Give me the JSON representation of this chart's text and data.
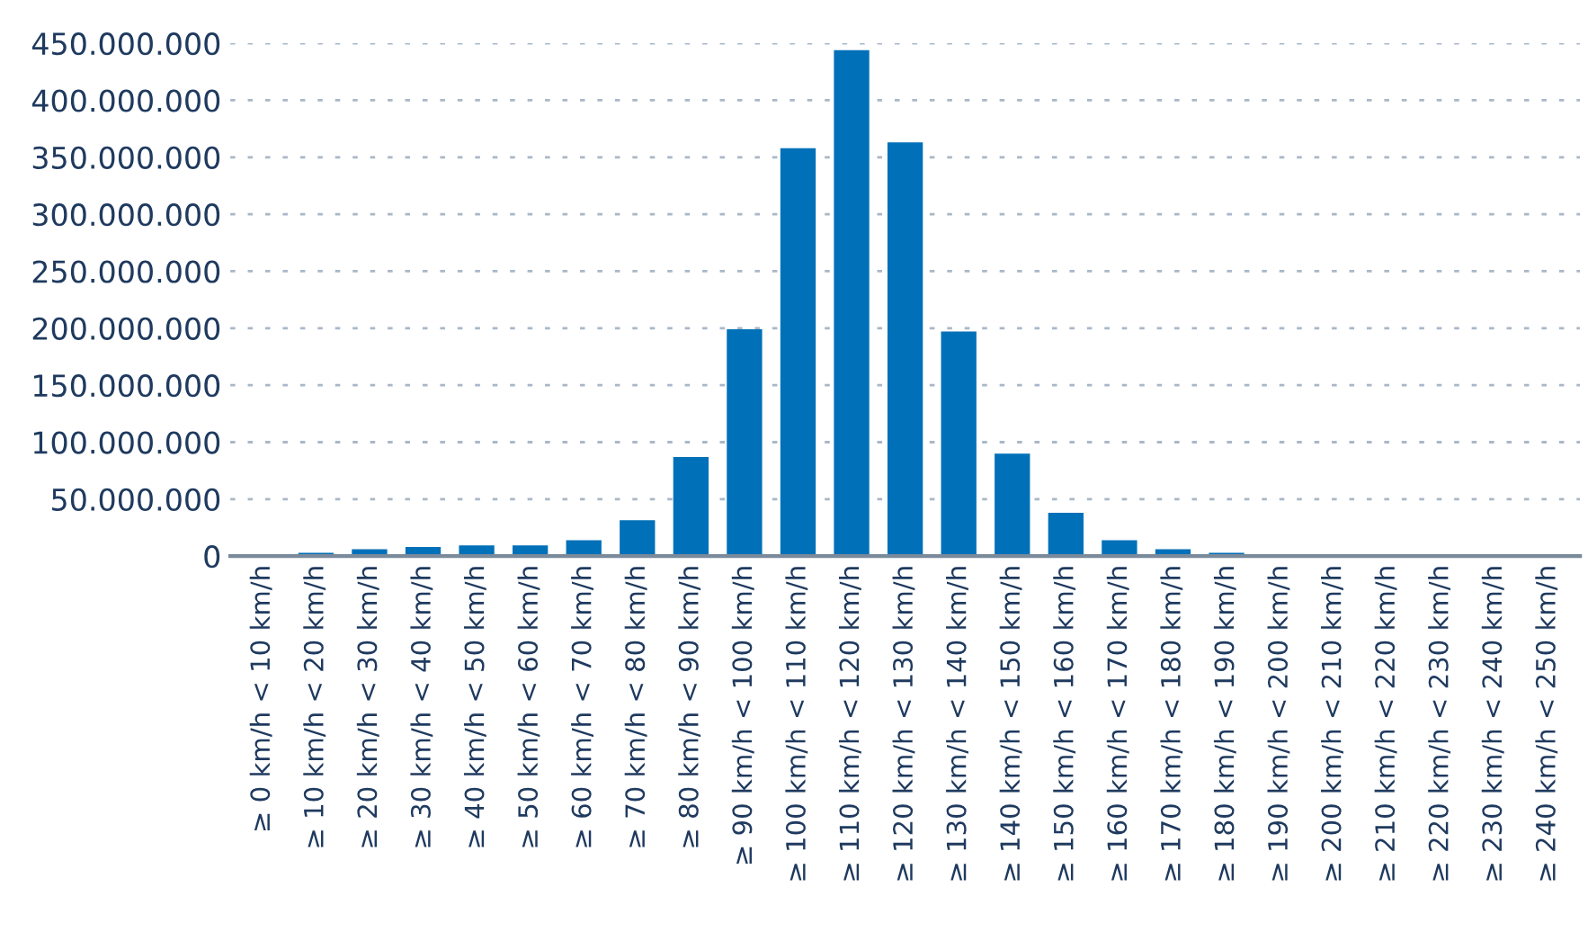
{
  "chart_data": {
    "type": "bar",
    "categories": [
      "≥ 0 km/h < 10 km/h",
      "≥ 10 km/h < 20 km/h",
      "≥ 20 km/h < 30 km/h",
      "≥ 30 km/h < 40 km/h",
      "≥ 40 km/h < 50 km/h",
      "≥ 50 km/h < 60 km/h",
      "≥ 60 km/h < 70 km/h",
      "≥ 70 km/h < 80 km/h",
      "≥ 80 km/h < 90 km/h",
      "≥ 90 km/h < 100 km/h",
      "≥ 100 km/h < 110 km/h",
      "≥ 110 km/h < 120 km/h",
      "≥ 120 km/h < 130 km/h",
      "≥ 130 km/h < 140 km/h",
      "≥ 140 km/h < 150 km/h",
      "≥ 150 km/h < 160 km/h",
      "≥ 160 km/h < 170 km/h",
      "≥ 170 km/h < 180 km/h",
      "≥ 180 km/h < 190 km/h",
      "≥ 190 km/h < 200 km/h",
      "≥ 200 km/h < 210 km/h",
      "≥ 210 km/h < 220 km/h",
      "≥ 220 km/h < 230 km/h",
      "≥ 230 km/h < 240 km/h",
      "≥ 240 km/h < 250 km/h"
    ],
    "values": [
      1500000,
      3000000,
      6000000,
      8000000,
      9500000,
      9500000,
      14000000,
      31500000,
      87000000,
      199000000,
      358000000,
      444000000,
      363000000,
      197000000,
      90000000,
      38000000,
      14000000,
      6000000,
      3000000,
      1500000,
      1500000,
      1500000,
      1500000,
      1500000,
      1500000
    ],
    "color": "#0070b8",
    "ylim": [
      0,
      450000000
    ],
    "yticks": [
      {
        "value": 0,
        "label": "0"
      },
      {
        "value": 50000000,
        "label": "50.000.000"
      },
      {
        "value": 100000000,
        "label": "100.000.000"
      },
      {
        "value": 150000000,
        "label": "150.000.000"
      },
      {
        "value": 200000000,
        "label": "200.000.000"
      },
      {
        "value": 250000000,
        "label": "250.000.000"
      },
      {
        "value": 300000000,
        "label": "300.000.000"
      },
      {
        "value": 350000000,
        "label": "350.000.000"
      },
      {
        "value": 400000000,
        "label": "400.000.000"
      },
      {
        "value": 450000000,
        "label": "450.000.000"
      }
    ],
    "grid": "y",
    "legend": false
  }
}
